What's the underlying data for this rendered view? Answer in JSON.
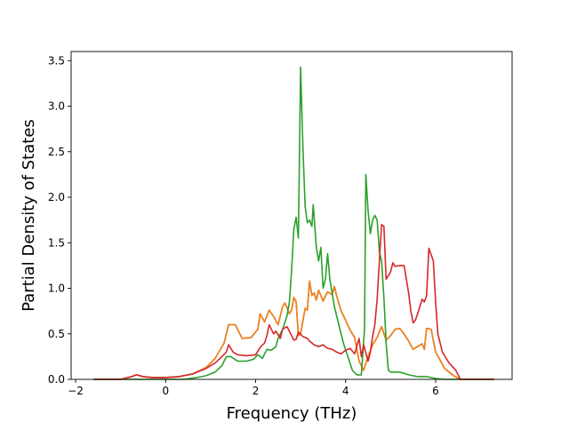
{
  "chart_data": {
    "type": "line",
    "title": "",
    "xlabel": "Frequency (THz)",
    "ylabel": "Partial Density of States",
    "xlim": [
      -2.1,
      7.7
    ],
    "ylim": [
      0,
      3.6
    ],
    "xticks": [
      -2,
      0,
      2,
      4,
      6
    ],
    "xtick_labels": [
      "−2",
      "0",
      "2",
      "4",
      "6"
    ],
    "yticks": [
      0.0,
      0.5,
      1.0,
      1.5,
      2.0,
      2.5,
      3.0,
      3.5
    ],
    "ytick_labels": [
      "0.0",
      "0.5",
      "1.0",
      "1.5",
      "2.0",
      "2.5",
      "3.0",
      "3.5"
    ],
    "grid": false,
    "legend": "none",
    "series": [
      {
        "color": "#1f77b4",
        "points": [
          [
            -1.6,
            0
          ],
          [
            -1.0,
            0.0
          ],
          [
            -0.75,
            0.03
          ],
          [
            -0.65,
            0.05
          ],
          [
            -0.5,
            0.03
          ],
          [
            -0.3,
            0.02
          ],
          [
            0.0,
            0.02
          ],
          [
            0.3,
            0.03
          ],
          [
            0.6,
            0.06
          ],
          [
            0.9,
            0.13
          ],
          [
            1.1,
            0.23
          ],
          [
            1.3,
            0.4
          ],
          [
            1.4,
            0.6
          ],
          [
            1.55,
            0.6
          ],
          [
            1.7,
            0.45
          ],
          [
            1.9,
            0.46
          ],
          [
            2.05,
            0.55
          ],
          [
            2.1,
            0.72
          ],
          [
            2.2,
            0.63
          ],
          [
            2.3,
            0.76
          ],
          [
            2.4,
            0.69
          ],
          [
            2.5,
            0.6
          ],
          [
            2.6,
            0.8
          ],
          [
            2.65,
            0.84
          ],
          [
            2.75,
            0.72
          ],
          [
            2.8,
            0.76
          ],
          [
            2.85,
            0.9
          ],
          [
            2.9,
            0.85
          ],
          [
            2.95,
            0.48
          ],
          [
            3.0,
            0.5
          ],
          [
            3.1,
            0.78
          ],
          [
            3.15,
            0.76
          ],
          [
            3.2,
            1.08
          ],
          [
            3.25,
            0.92
          ],
          [
            3.3,
            0.95
          ],
          [
            3.35,
            0.87
          ],
          [
            3.4,
            0.98
          ],
          [
            3.5,
            0.86
          ],
          [
            3.6,
            0.96
          ],
          [
            3.7,
            0.93
          ],
          [
            3.75,
            1.02
          ],
          [
            3.8,
            0.92
          ],
          [
            3.9,
            0.75
          ],
          [
            4.0,
            0.65
          ],
          [
            4.1,
            0.54
          ],
          [
            4.2,
            0.46
          ],
          [
            4.3,
            0.2
          ],
          [
            4.4,
            0.1
          ],
          [
            4.5,
            0.25
          ],
          [
            4.6,
            0.38
          ],
          [
            4.7,
            0.46
          ],
          [
            4.8,
            0.58
          ],
          [
            4.9,
            0.43
          ],
          [
            5.0,
            0.48
          ],
          [
            5.1,
            0.55
          ],
          [
            5.2,
            0.56
          ],
          [
            5.3,
            0.5
          ],
          [
            5.4,
            0.42
          ],
          [
            5.5,
            0.33
          ],
          [
            5.6,
            0.36
          ],
          [
            5.7,
            0.39
          ],
          [
            5.75,
            0.33
          ],
          [
            5.8,
            0.56
          ],
          [
            5.9,
            0.55
          ],
          [
            6.0,
            0.3
          ],
          [
            6.2,
            0.12
          ],
          [
            6.4,
            0.04
          ],
          [
            6.55,
            0.0
          ],
          [
            7.3,
            0.0
          ]
        ]
      },
      {
        "color": "#ff7f0e",
        "points": [
          [
            -1.6,
            0
          ],
          [
            -1.0,
            0.0
          ],
          [
            -0.75,
            0.03
          ],
          [
            -0.65,
            0.05
          ],
          [
            -0.5,
            0.03
          ],
          [
            -0.3,
            0.02
          ],
          [
            0.0,
            0.02
          ],
          [
            0.3,
            0.03
          ],
          [
            0.6,
            0.06
          ],
          [
            0.9,
            0.13
          ],
          [
            1.1,
            0.23
          ],
          [
            1.3,
            0.4
          ],
          [
            1.4,
            0.6
          ],
          [
            1.55,
            0.6
          ],
          [
            1.7,
            0.45
          ],
          [
            1.9,
            0.46
          ],
          [
            2.05,
            0.55
          ],
          [
            2.1,
            0.72
          ],
          [
            2.2,
            0.63
          ],
          [
            2.3,
            0.76
          ],
          [
            2.4,
            0.69
          ],
          [
            2.5,
            0.6
          ],
          [
            2.6,
            0.8
          ],
          [
            2.65,
            0.84
          ],
          [
            2.75,
            0.72
          ],
          [
            2.8,
            0.76
          ],
          [
            2.85,
            0.9
          ],
          [
            2.9,
            0.85
          ],
          [
            2.95,
            0.48
          ],
          [
            3.0,
            0.5
          ],
          [
            3.1,
            0.78
          ],
          [
            3.15,
            0.76
          ],
          [
            3.2,
            1.08
          ],
          [
            3.25,
            0.92
          ],
          [
            3.3,
            0.95
          ],
          [
            3.35,
            0.87
          ],
          [
            3.4,
            0.98
          ],
          [
            3.5,
            0.86
          ],
          [
            3.6,
            0.96
          ],
          [
            3.7,
            0.93
          ],
          [
            3.75,
            1.02
          ],
          [
            3.8,
            0.92
          ],
          [
            3.9,
            0.75
          ],
          [
            4.0,
            0.65
          ],
          [
            4.1,
            0.54
          ],
          [
            4.2,
            0.46
          ],
          [
            4.3,
            0.2
          ],
          [
            4.4,
            0.1
          ],
          [
            4.5,
            0.25
          ],
          [
            4.6,
            0.38
          ],
          [
            4.7,
            0.46
          ],
          [
            4.8,
            0.58
          ],
          [
            4.9,
            0.43
          ],
          [
            5.0,
            0.48
          ],
          [
            5.1,
            0.55
          ],
          [
            5.2,
            0.56
          ],
          [
            5.3,
            0.5
          ],
          [
            5.4,
            0.42
          ],
          [
            5.5,
            0.33
          ],
          [
            5.6,
            0.36
          ],
          [
            5.7,
            0.39
          ],
          [
            5.75,
            0.33
          ],
          [
            5.8,
            0.56
          ],
          [
            5.9,
            0.55
          ],
          [
            6.0,
            0.3
          ],
          [
            6.2,
            0.12
          ],
          [
            6.4,
            0.04
          ],
          [
            6.55,
            0.0
          ],
          [
            7.3,
            0.0
          ]
        ]
      },
      {
        "color": "#2ca02c",
        "points": [
          [
            -1.6,
            0
          ],
          [
            -1.0,
            0.0
          ],
          [
            -0.5,
            0.0
          ],
          [
            0.0,
            0.0
          ],
          [
            0.4,
            0.0
          ],
          [
            0.7,
            0.02
          ],
          [
            0.9,
            0.04
          ],
          [
            1.1,
            0.08
          ],
          [
            1.25,
            0.15
          ],
          [
            1.35,
            0.25
          ],
          [
            1.45,
            0.25
          ],
          [
            1.6,
            0.2
          ],
          [
            1.8,
            0.2
          ],
          [
            1.95,
            0.22
          ],
          [
            2.05,
            0.27
          ],
          [
            2.15,
            0.23
          ],
          [
            2.25,
            0.33
          ],
          [
            2.35,
            0.32
          ],
          [
            2.45,
            0.36
          ],
          [
            2.5,
            0.45
          ],
          [
            2.6,
            0.55
          ],
          [
            2.7,
            0.7
          ],
          [
            2.75,
            0.85
          ],
          [
            2.8,
            1.2
          ],
          [
            2.85,
            1.65
          ],
          [
            2.9,
            1.78
          ],
          [
            2.95,
            1.55
          ],
          [
            3.0,
            3.43
          ],
          [
            3.05,
            2.55
          ],
          [
            3.1,
            1.9
          ],
          [
            3.15,
            1.72
          ],
          [
            3.2,
            1.75
          ],
          [
            3.25,
            1.68
          ],
          [
            3.28,
            1.92
          ],
          [
            3.35,
            1.45
          ],
          [
            3.4,
            1.3
          ],
          [
            3.45,
            1.45
          ],
          [
            3.5,
            1.0
          ],
          [
            3.55,
            1.1
          ],
          [
            3.6,
            1.38
          ],
          [
            3.65,
            1.1
          ],
          [
            3.75,
            0.8
          ],
          [
            3.85,
            0.6
          ],
          [
            3.95,
            0.4
          ],
          [
            4.05,
            0.25
          ],
          [
            4.15,
            0.1
          ],
          [
            4.25,
            0.05
          ],
          [
            4.35,
            0.05
          ],
          [
            4.42,
            0.55
          ],
          [
            4.45,
            2.25
          ],
          [
            4.5,
            1.85
          ],
          [
            4.55,
            1.6
          ],
          [
            4.6,
            1.75
          ],
          [
            4.65,
            1.8
          ],
          [
            4.7,
            1.75
          ],
          [
            4.75,
            1.4
          ],
          [
            4.8,
            1.3
          ],
          [
            4.85,
            0.9
          ],
          [
            4.9,
            0.4
          ],
          [
            4.95,
            0.1
          ],
          [
            5.0,
            0.08
          ],
          [
            5.2,
            0.08
          ],
          [
            5.4,
            0.05
          ],
          [
            5.6,
            0.03
          ],
          [
            5.8,
            0.03
          ],
          [
            6.0,
            0.01
          ],
          [
            6.2,
            0.0
          ],
          [
            7.3,
            0.0
          ]
        ]
      },
      {
        "color": "#d62728",
        "points": [
          [
            -1.6,
            0
          ],
          [
            -1.0,
            0.0
          ],
          [
            -0.75,
            0.03
          ],
          [
            -0.65,
            0.05
          ],
          [
            -0.5,
            0.03
          ],
          [
            -0.3,
            0.02
          ],
          [
            0.0,
            0.02
          ],
          [
            0.3,
            0.03
          ],
          [
            0.6,
            0.06
          ],
          [
            0.9,
            0.12
          ],
          [
            1.1,
            0.18
          ],
          [
            1.25,
            0.25
          ],
          [
            1.35,
            0.3
          ],
          [
            1.4,
            0.38
          ],
          [
            1.5,
            0.3
          ],
          [
            1.6,
            0.27
          ],
          [
            1.8,
            0.26
          ],
          [
            2.0,
            0.27
          ],
          [
            2.1,
            0.35
          ],
          [
            2.2,
            0.4
          ],
          [
            2.25,
            0.48
          ],
          [
            2.3,
            0.6
          ],
          [
            2.4,
            0.5
          ],
          [
            2.45,
            0.53
          ],
          [
            2.55,
            0.45
          ],
          [
            2.6,
            0.55
          ],
          [
            2.7,
            0.58
          ],
          [
            2.8,
            0.48
          ],
          [
            2.85,
            0.43
          ],
          [
            2.9,
            0.44
          ],
          [
            2.95,
            0.52
          ],
          [
            3.05,
            0.47
          ],
          [
            3.15,
            0.45
          ],
          [
            3.2,
            0.42
          ],
          [
            3.3,
            0.38
          ],
          [
            3.4,
            0.36
          ],
          [
            3.5,
            0.38
          ],
          [
            3.6,
            0.34
          ],
          [
            3.7,
            0.33
          ],
          [
            3.8,
            0.3
          ],
          [
            3.9,
            0.28
          ],
          [
            4.0,
            0.32
          ],
          [
            4.1,
            0.34
          ],
          [
            4.2,
            0.28
          ],
          [
            4.3,
            0.45
          ],
          [
            4.35,
            0.25
          ],
          [
            4.4,
            0.38
          ],
          [
            4.5,
            0.2
          ],
          [
            4.55,
            0.3
          ],
          [
            4.6,
            0.47
          ],
          [
            4.65,
            0.6
          ],
          [
            4.7,
            0.88
          ],
          [
            4.75,
            1.3
          ],
          [
            4.8,
            1.7
          ],
          [
            4.85,
            1.68
          ],
          [
            4.9,
            1.1
          ],
          [
            5.0,
            1.18
          ],
          [
            5.05,
            1.28
          ],
          [
            5.1,
            1.24
          ],
          [
            5.2,
            1.25
          ],
          [
            5.3,
            1.25
          ],
          [
            5.4,
            0.95
          ],
          [
            5.45,
            0.75
          ],
          [
            5.5,
            0.62
          ],
          [
            5.55,
            0.65
          ],
          [
            5.6,
            0.72
          ],
          [
            5.7,
            0.88
          ],
          [
            5.75,
            0.85
          ],
          [
            5.8,
            0.92
          ],
          [
            5.85,
            1.44
          ],
          [
            5.95,
            1.3
          ],
          [
            6.0,
            0.85
          ],
          [
            6.05,
            0.5
          ],
          [
            6.15,
            0.3
          ],
          [
            6.3,
            0.18
          ],
          [
            6.45,
            0.1
          ],
          [
            6.55,
            0.0
          ],
          [
            7.3,
            0.0
          ]
        ]
      }
    ]
  }
}
